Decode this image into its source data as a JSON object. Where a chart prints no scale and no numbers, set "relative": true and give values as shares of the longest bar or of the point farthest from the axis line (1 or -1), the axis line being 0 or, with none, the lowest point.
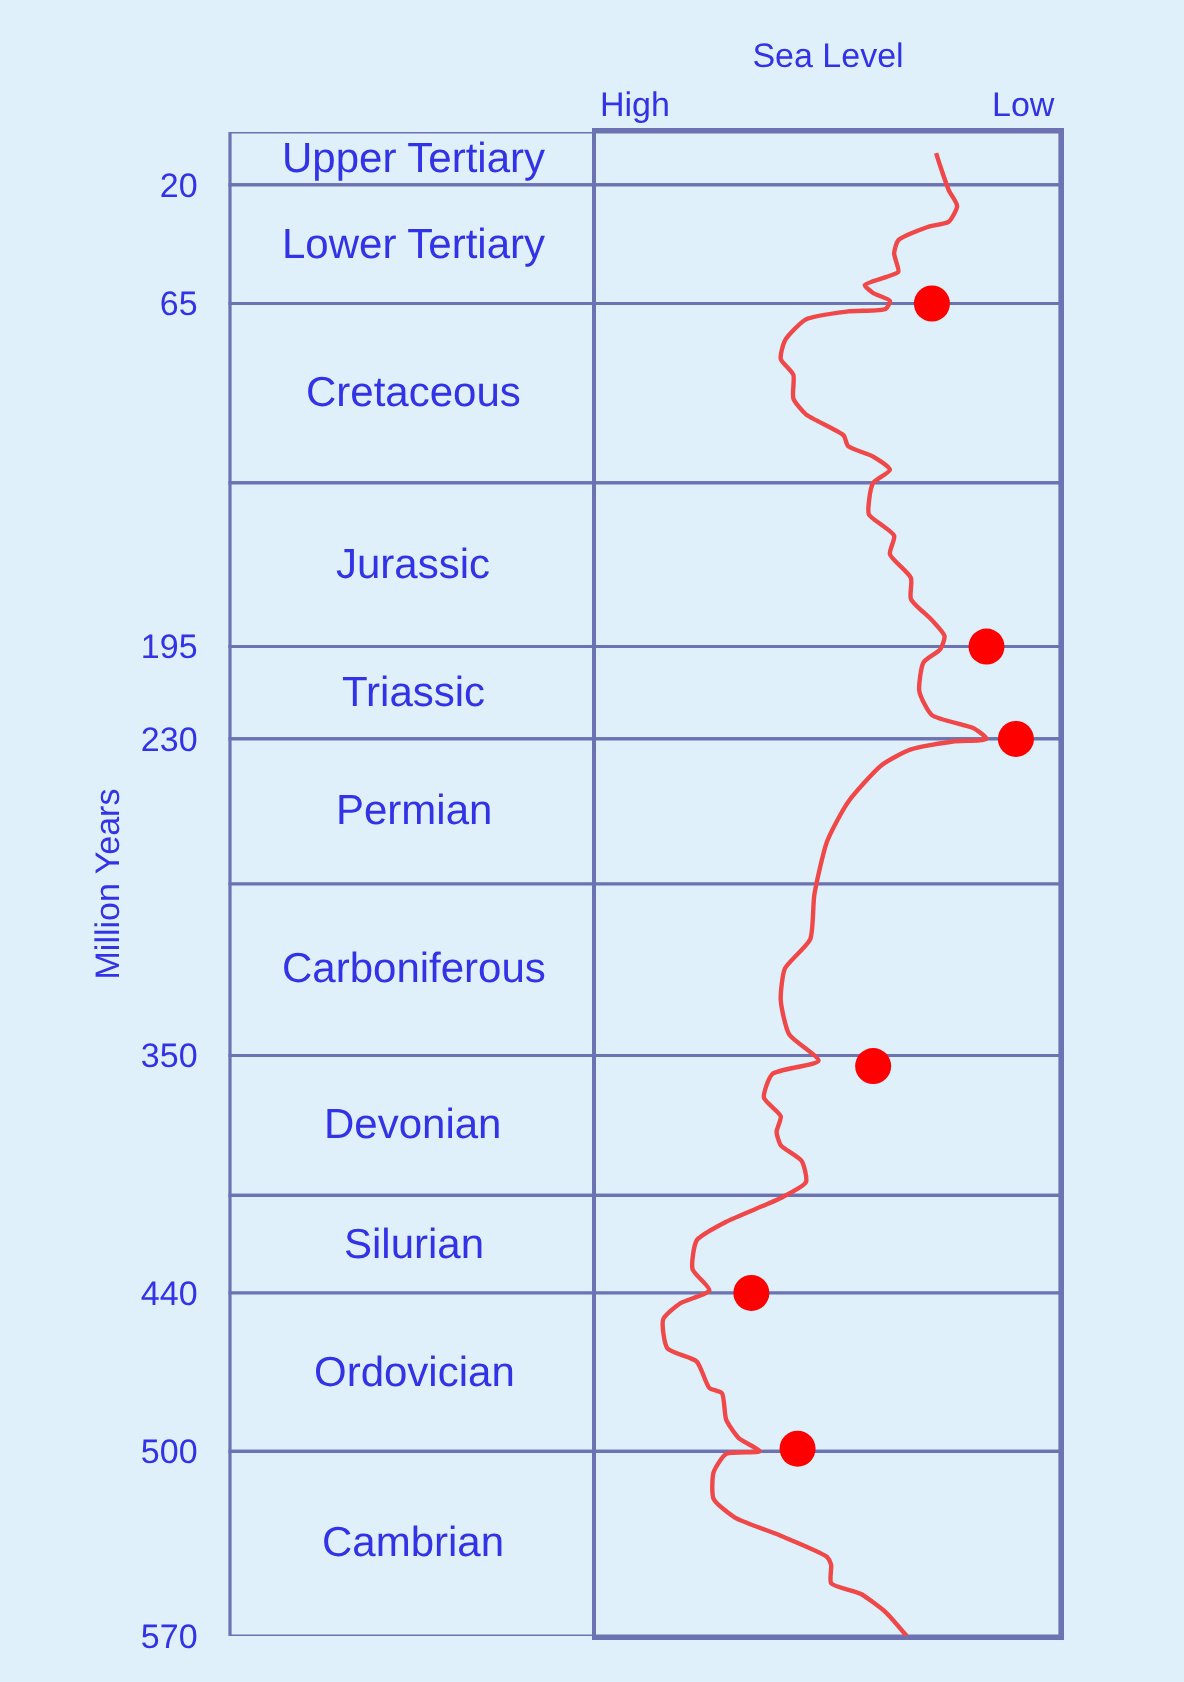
{
  "chart_data": {
    "type": "line",
    "orientation": "horizontal",
    "relative": true,
    "xlabel": "Sea Level",
    "ylabel": "Million Years",
    "annotations": [
      "High",
      "Low"
    ],
    "ylim": [
      570,
      0
    ],
    "yticks": [
      20,
      65,
      195,
      230,
      350,
      440,
      500,
      570
    ],
    "series": [
      {
        "color": "#f04848",
        "x": [
          8,
          13,
          22,
          28,
          34,
          36,
          41,
          46,
          53,
          55,
          58,
          61,
          64,
          67,
          68,
          71,
          79,
          86,
          92,
          101,
          107,
          115,
          119,
          123,
          128,
          133,
          140,
          145,
          153,
          160,
          169,
          177,
          185,
          191,
          196,
          201,
          212,
          221,
          226,
          230,
          231,
          234,
          240,
          254,
          269,
          289,
          306,
          317,
          329,
          342,
          352,
          357,
          366,
          373,
          379,
          384,
          390,
          398,
          404,
          413,
          420,
          431,
          439,
          444,
          450,
          461,
          466,
          476,
          478,
          488,
          495,
          500,
          501,
          508,
          518,
          525,
          532,
          540,
          543,
          550,
          554,
          561,
          570
        ],
        "values": [
          0.81,
          0.82,
          0.84,
          0.86,
          0.84,
          0.79,
          0.72,
          0.71,
          0.72,
          0.69,
          0.64,
          0.66,
          0.7,
          0.69,
          0.6,
          0.5,
          0.45,
          0.44,
          0.47,
          0.47,
          0.5,
          0.59,
          0.6,
          0.66,
          0.7,
          0.66,
          0.65,
          0.65,
          0.71,
          0.7,
          0.75,
          0.75,
          0.8,
          0.83,
          0.82,
          0.78,
          0.77,
          0.8,
          0.9,
          0.93,
          0.85,
          0.75,
          0.68,
          0.6,
          0.55,
          0.52,
          0.51,
          0.45,
          0.44,
          0.46,
          0.53,
          0.42,
          0.4,
          0.44,
          0.43,
          0.44,
          0.49,
          0.5,
          0.44,
          0.31,
          0.24,
          0.23,
          0.27,
          0.2,
          0.16,
          0.17,
          0.24,
          0.27,
          0.3,
          0.31,
          0.34,
          0.39,
          0.31,
          0.28,
          0.28,
          0.33,
          0.44,
          0.55,
          0.56,
          0.56,
          0.63,
          0.69,
          0.74
        ]
      },
      {
        "type": "scatter",
        "color": "#ff0000",
        "marker": "circle",
        "x": [
          65,
          195,
          230,
          354,
          440,
          499
        ],
        "values": [
          0.8,
          0.93,
          1,
          0.66,
          0.37,
          0.48
        ]
      }
    ],
    "bands": [
      {
        "axis": "y",
        "from": 0,
        "to": 20,
        "label": "Upper Tertiary",
        "color": "#dff0fa"
      },
      {
        "axis": "y",
        "from": 20,
        "to": 65,
        "label": "Lower Tertiary",
        "color": "#dff0fa"
      },
      {
        "axis": "y",
        "from": 65,
        "to": 133,
        "label": "Cretaceous",
        "color": "#dff0fa"
      },
      {
        "axis": "y",
        "from": 133,
        "to": 195,
        "label": "Jurassic",
        "color": "#dff0fa"
      },
      {
        "axis": "y",
        "from": 195,
        "to": 230,
        "label": "Triassic",
        "color": "#dff0fa"
      },
      {
        "axis": "y",
        "from": 230,
        "to": 285,
        "label": "Permian",
        "color": "#dff0fa"
      },
      {
        "axis": "y",
        "from": 285,
        "to": 350,
        "label": "Carboniferous",
        "color": "#dff0fa"
      },
      {
        "axis": "y",
        "from": 350,
        "to": 403,
        "label": "Devonian",
        "color": "#dff0fa"
      },
      {
        "axis": "y",
        "from": 403,
        "to": 440,
        "label": "Silurian",
        "color": "#dff0fa"
      },
      {
        "axis": "y",
        "from": 440,
        "to": 500,
        "label": "Ordovician",
        "color": "#dff0fa"
      },
      {
        "axis": "y",
        "from": 500,
        "to": 570,
        "label": "Cambrian",
        "color": "#dff0fa"
      }
    ]
  }
}
